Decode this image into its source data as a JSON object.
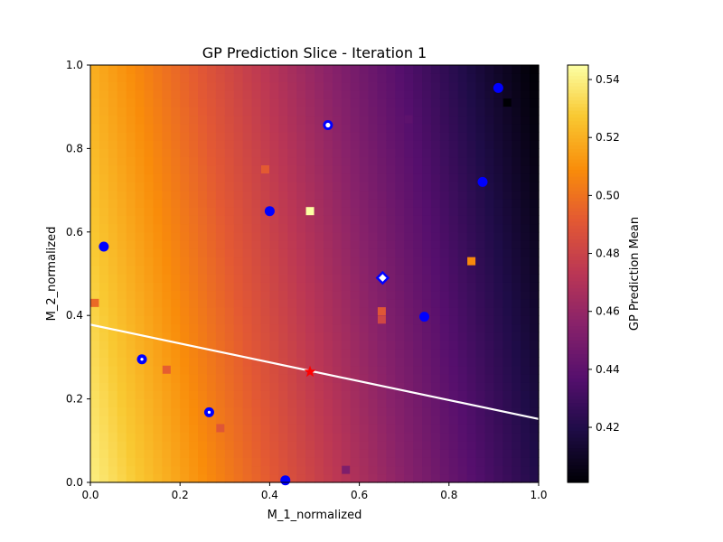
{
  "chart_data": {
    "type": "heatmap",
    "title": "GP Prediction Slice - Iteration 1",
    "xlabel": "M_1_normalized",
    "ylabel": "M_2_normalized",
    "xlim": [
      0,
      1
    ],
    "ylim": [
      0,
      1
    ],
    "x_ticks": [
      "0.0",
      "0.2",
      "0.4",
      "0.6",
      "0.8",
      "1.0"
    ],
    "y_ticks": [
      "0.0",
      "0.2",
      "0.4",
      "0.6",
      "0.8",
      "1.0"
    ],
    "colormap": "inferno",
    "colorbar": {
      "label": "GP Prediction Mean",
      "range": [
        0.401,
        0.545
      ],
      "ticks": [
        "0.42",
        "0.44",
        "0.46",
        "0.48",
        "0.50",
        "0.52",
        "0.54"
      ]
    },
    "surface_mean": {
      "description_of_model": "linear",
      "value_at_origin": 0.54,
      "slope_x": -0.12,
      "slope_y": -0.02
    },
    "grid": false,
    "sampled_points_square": [
      {
        "x": 0.01,
        "y": 0.43,
        "value": 0.497
      },
      {
        "x": 0.17,
        "y": 0.27,
        "value": 0.493
      },
      {
        "x": 0.29,
        "y": 0.13,
        "value": 0.49
      },
      {
        "x": 0.39,
        "y": 0.75,
        "value": 0.492
      },
      {
        "x": 0.49,
        "y": 0.65,
        "value": 0.545
      },
      {
        "x": 0.57,
        "y": 0.03,
        "value": 0.452
      },
      {
        "x": 0.65,
        "y": 0.41,
        "value": 0.49
      },
      {
        "x": 0.65,
        "y": 0.39,
        "value": 0.482
      },
      {
        "x": 0.71,
        "y": 0.87,
        "value": 0.44
      },
      {
        "x": 0.85,
        "y": 0.53,
        "value": 0.508
      },
      {
        "x": 0.93,
        "y": 0.91,
        "value": 0.401
      }
    ],
    "observed_points_circle": [
      {
        "x": 0.03,
        "y": 0.565
      },
      {
        "x": 0.115,
        "y": 0.295,
        "marker": "dot"
      },
      {
        "x": 0.265,
        "y": 0.168,
        "marker": "dot"
      },
      {
        "x": 0.4,
        "y": 0.65
      },
      {
        "x": 0.435,
        "y": 0.005
      },
      {
        "x": 0.53,
        "y": 0.856,
        "marker": "ring"
      },
      {
        "x": 0.745,
        "y": 0.397
      },
      {
        "x": 0.875,
        "y": 0.72
      },
      {
        "x": 0.91,
        "y": 0.945
      }
    ],
    "highlight_diamond": {
      "x": 0.652,
      "y": 0.49
    },
    "best_star": {
      "x": 0.49,
      "y": 0.265
    },
    "boundary_line": {
      "x": [
        0,
        1
      ],
      "y": [
        0.378,
        0.152
      ],
      "color": "#ffffff"
    },
    "colors": {
      "circle": "#0000ff",
      "star": "#ff0000",
      "diamond_edge": "#0000ff",
      "diamond_fill": "#ffffff"
    }
  }
}
